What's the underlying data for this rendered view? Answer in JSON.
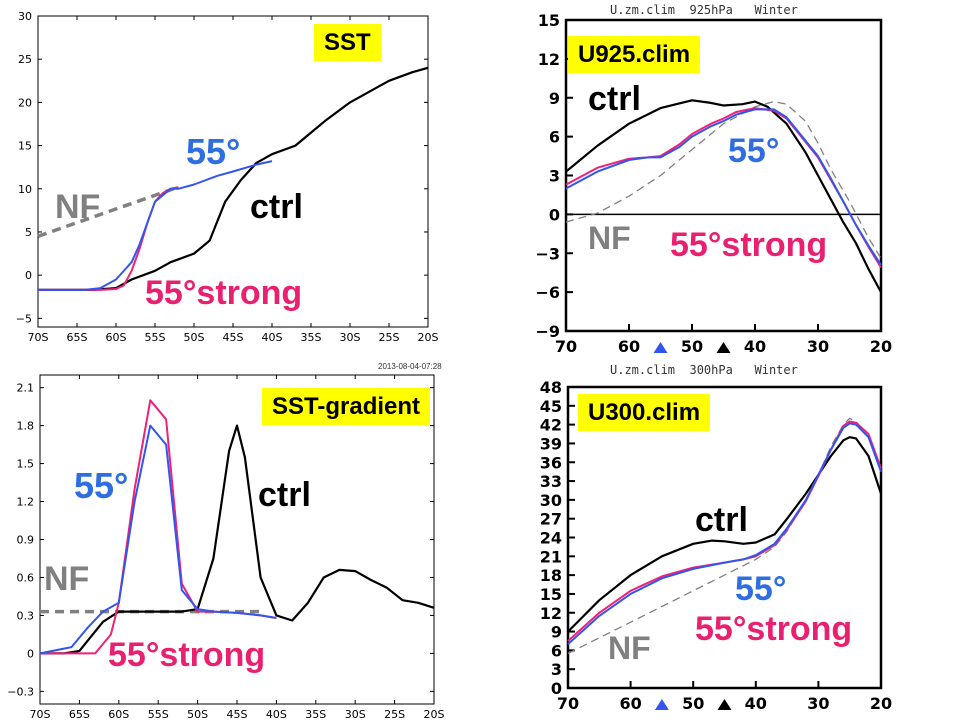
{
  "colors": {
    "ctrl": "#000000",
    "blue": "#3355ee",
    "pink": "#ee2277",
    "nf": "#808080",
    "label_blue": "#2f6ee0",
    "label_pink": "#e8206f",
    "label_nf": "#808080",
    "tag_bg": "#ffff00"
  },
  "chart_data": [
    {
      "id": "sst",
      "type": "line",
      "tag": "SST",
      "xlim": [
        70,
        20
      ],
      "ylim": [
        -6,
        30
      ],
      "x_ticks": [
        70,
        65,
        60,
        55,
        50,
        45,
        40,
        35,
        30,
        25,
        20
      ],
      "x_tick_labels": [
        "70S",
        "65S",
        "60S",
        "55S",
        "50S",
        "45S",
        "40S",
        "35S",
        "30S",
        "25S",
        "20S"
      ],
      "y_ticks": [
        -5,
        0,
        5,
        10,
        15,
        20,
        25,
        30
      ],
      "y_tick_labels": [
        "−5",
        "0",
        "5",
        "10",
        "15",
        "20",
        "25",
        "30"
      ],
      "labels": {
        "ctrl": "ctrl",
        "blue": "55°",
        "pink": "55°strong",
        "nf": "NF"
      },
      "series": [
        {
          "key": "ctrl",
          "x": [
            70,
            67,
            63,
            60,
            58,
            55,
            53,
            50,
            48,
            46,
            44,
            42,
            40,
            37,
            35,
            33,
            30,
            27,
            25,
            22,
            20
          ],
          "y": [
            -1.7,
            -1.7,
            -1.7,
            -1.5,
            -0.5,
            0.5,
            1.5,
            2.5,
            4,
            8.5,
            11,
            13,
            14,
            15,
            16.5,
            18,
            20,
            21.5,
            22.5,
            23.5,
            24
          ]
        },
        {
          "key": "blue",
          "x": [
            70,
            67,
            64,
            62,
            60,
            58,
            57,
            56,
            55,
            53,
            52,
            50,
            47,
            45,
            42,
            40
          ],
          "y": [
            -1.7,
            -1.7,
            -1.7,
            -1.5,
            -0.5,
            1.5,
            3.5,
            6,
            8.5,
            10,
            10,
            10.5,
            11.5,
            12,
            12.8,
            13.2
          ]
        },
        {
          "key": "pink",
          "x": [
            70,
            67,
            64,
            62,
            60,
            59,
            58,
            57,
            56,
            55,
            54,
            53,
            52
          ],
          "y": [
            -1.7,
            -1.7,
            -1.7,
            -1.7,
            -1.6,
            -1.2,
            0.5,
            3,
            6,
            8.5,
            9.5,
            10,
            10.2
          ]
        },
        {
          "key": "nf",
          "x": [
            70,
            52
          ],
          "y": [
            4.5,
            10.2
          ],
          "dashed": true
        }
      ]
    },
    {
      "id": "sstgrad",
      "type": "line",
      "tag": "SST-gradient",
      "top_text": "2013-08-04-07:28",
      "xlim": [
        70,
        20
      ],
      "ylim": [
        -0.4,
        2.2
      ],
      "x_ticks": [
        70,
        65,
        60,
        55,
        50,
        45,
        40,
        35,
        30,
        25,
        20
      ],
      "x_tick_labels": [
        "70S",
        "65S",
        "60S",
        "55S",
        "50S",
        "45S",
        "40S",
        "35S",
        "30S",
        "25S",
        "20S"
      ],
      "y_ticks": [
        -0.3,
        0,
        0.3,
        0.6,
        0.9,
        1.2,
        1.5,
        1.8,
        2.1
      ],
      "y_tick_labels": [
        "−0.3",
        "0",
        "0.3",
        "0.6",
        "0.9",
        "1.2",
        "1.5",
        "1.8",
        "2.1"
      ],
      "labels": {
        "ctrl": "ctrl",
        "blue": "55°",
        "pink": "55°strong",
        "nf": "NF"
      },
      "series": [
        {
          "key": "ctrl",
          "x": [
            70,
            67,
            65,
            62,
            60,
            57,
            55,
            52,
            50,
            48,
            46,
            45,
            44,
            42,
            40,
            38,
            36,
            34,
            32,
            30,
            28,
            26,
            24,
            22,
            20
          ],
          "y": [
            0,
            0,
            0.02,
            0.25,
            0.33,
            0.33,
            0.33,
            0.33,
            0.35,
            0.75,
            1.6,
            1.8,
            1.55,
            0.6,
            0.3,
            0.26,
            0.4,
            0.6,
            0.66,
            0.65,
            0.58,
            0.52,
            0.42,
            0.4,
            0.36
          ]
        },
        {
          "key": "blue",
          "x": [
            70,
            66,
            64,
            62,
            60,
            58,
            56,
            54,
            52,
            50,
            48,
            45,
            42,
            40
          ],
          "y": [
            0,
            0.05,
            0.2,
            0.33,
            0.4,
            1.2,
            1.8,
            1.65,
            0.5,
            0.35,
            0.33,
            0.32,
            0.3,
            0.28
          ]
        },
        {
          "key": "pink",
          "x": [
            70,
            65,
            63,
            61,
            60,
            58,
            56,
            54,
            52,
            50,
            48,
            45,
            42,
            40
          ],
          "y": [
            0,
            0,
            0,
            0.15,
            0.4,
            1.3,
            2.0,
            1.85,
            0.55,
            0.33,
            0.33,
            0.32,
            0.3,
            0.28
          ]
        },
        {
          "key": "nf",
          "x": [
            70,
            42
          ],
          "y": [
            0.33,
            0.33
          ],
          "dashed": true
        }
      ]
    },
    {
      "id": "u925",
      "type": "line",
      "tag": "U925.clim",
      "top_text": "U.zm.clim  925hPa   Winter",
      "xlim": [
        70,
        20
      ],
      "ylim": [
        -9,
        15
      ],
      "x_ticks": [
        70,
        60,
        50,
        40,
        30,
        20
      ],
      "x_tick_labels": [
        "70",
        "60",
        "50",
        "40",
        "30",
        "20"
      ],
      "y_ticks": [
        -9,
        -6,
        -3,
        0,
        3,
        6,
        9,
        12,
        15
      ],
      "y_tick_labels": [
        "−9",
        "−6",
        "−3",
        "0",
        "3",
        "6",
        "9",
        "12",
        "15"
      ],
      "markers": [
        {
          "x": 55,
          "color": "#3355ee"
        },
        {
          "x": 45,
          "color": "#000000"
        }
      ],
      "labels": {
        "ctrl": "ctrl",
        "blue": "55°",
        "pink": "55°strong",
        "nf": "NF"
      },
      "series": [
        {
          "key": "ctrl",
          "x": [
            70,
            65,
            60,
            55,
            50,
            47,
            45,
            42,
            40,
            38,
            35,
            32,
            30,
            28,
            26,
            24,
            22,
            20
          ],
          "y": [
            3.3,
            5.3,
            7,
            8.2,
            8.8,
            8.6,
            8.4,
            8.5,
            8.7,
            8.3,
            7,
            4.8,
            3,
            1.2,
            -0.6,
            -2.2,
            -4.2,
            -6
          ]
        },
        {
          "key": "blue",
          "x": [
            70,
            65,
            60,
            57,
            55,
            52,
            50,
            47,
            45,
            43,
            40,
            37,
            35,
            33,
            30,
            28,
            26,
            24,
            22,
            20
          ],
          "y": [
            2,
            3.3,
            4.2,
            4.4,
            4.4,
            5.2,
            6,
            6.8,
            7.2,
            7.7,
            8.1,
            8.1,
            7.5,
            6.3,
            4.5,
            2.8,
            1,
            -0.8,
            -2.4,
            -3.9
          ]
        },
        {
          "key": "pink",
          "x": [
            70,
            65,
            60,
            57,
            55,
            52,
            50,
            47,
            45,
            43,
            40,
            37,
            35,
            33,
            30,
            28,
            26,
            24,
            22,
            20
          ],
          "y": [
            2.3,
            3.6,
            4.3,
            4.4,
            4.5,
            5.4,
            6.2,
            7,
            7.4,
            7.9,
            8.2,
            8.0,
            7.4,
            6.2,
            4.4,
            2.7,
            1,
            -0.8,
            -2.5,
            -4.1
          ]
        },
        {
          "key": "nf",
          "x": [
            70,
            65,
            60,
            55,
            50,
            45,
            40,
            37,
            35,
            32,
            30,
            28,
            25,
            22,
            20
          ],
          "y": [
            -0.6,
            0.1,
            1.4,
            3,
            5,
            7,
            8.3,
            8.7,
            8.5,
            7.2,
            5.5,
            3.5,
            1,
            -1.8,
            -3.4
          ],
          "dashed": true
        }
      ]
    },
    {
      "id": "u300",
      "type": "line",
      "tag": "U300.clim",
      "top_text": "U.zm.clim  300hPa   Winter",
      "xlim": [
        70,
        20
      ],
      "ylim": [
        0,
        48
      ],
      "x_ticks": [
        70,
        60,
        50,
        40,
        30,
        20
      ],
      "x_tick_labels": [
        "70",
        "60",
        "50",
        "40",
        "30",
        "20"
      ],
      "y_ticks": [
        0,
        3,
        6,
        9,
        12,
        15,
        18,
        21,
        24,
        27,
        30,
        33,
        36,
        39,
        42,
        45,
        48
      ],
      "y_tick_labels": [
        "0",
        "3",
        "6",
        "9",
        "12",
        "15",
        "18",
        "21",
        "24",
        "27",
        "30",
        "33",
        "36",
        "39",
        "42",
        "45",
        "48"
      ],
      "markers": [
        {
          "x": 55,
          "color": "#3355ee"
        },
        {
          "x": 45,
          "color": "#000000"
        }
      ],
      "labels": {
        "ctrl": "ctrl",
        "blue": "55°",
        "pink": "55°strong",
        "nf": "NF"
      },
      "series": [
        {
          "key": "ctrl",
          "x": [
            70,
            65,
            60,
            55,
            50,
            47,
            45,
            42,
            40,
            37,
            35,
            32,
            30,
            28,
            26,
            25,
            24,
            22,
            20
          ],
          "y": [
            9,
            14,
            18,
            21,
            23,
            23.5,
            23.4,
            23,
            23.2,
            24.5,
            27,
            31,
            34,
            37,
            39.5,
            40,
            39.8,
            37,
            31
          ]
        },
        {
          "key": "blue",
          "x": [
            70,
            65,
            60,
            55,
            50,
            45,
            42,
            40,
            37,
            35,
            32,
            30,
            28,
            26,
            25,
            24,
            22,
            20
          ],
          "y": [
            7,
            11.5,
            15,
            17.5,
            19,
            20,
            20.5,
            21.2,
            23,
            25.5,
            30,
            34,
            38,
            41.5,
            42.2,
            42,
            40,
            34.5
          ]
        },
        {
          "key": "pink",
          "x": [
            70,
            65,
            60,
            55,
            50,
            45,
            42,
            40,
            37,
            35,
            32,
            30,
            28,
            26,
            25,
            24,
            22,
            20
          ],
          "y": [
            7.5,
            12,
            15.5,
            17.8,
            19.2,
            20,
            20.5,
            21,
            22.8,
            25.3,
            29.8,
            33.8,
            38,
            41.8,
            42.5,
            42.3,
            40.5,
            35
          ]
        },
        {
          "key": "nf",
          "x": [
            70,
            65,
            60,
            55,
            50,
            45,
            40,
            37,
            35,
            32,
            30,
            28,
            26,
            25,
            24,
            22,
            20
          ],
          "y": [
            5.5,
            8,
            10.5,
            13,
            15.5,
            18,
            20.5,
            22.5,
            25,
            30,
            34,
            38.5,
            42,
            43,
            42.5,
            40,
            35
          ],
          "dashed": true
        }
      ]
    }
  ]
}
